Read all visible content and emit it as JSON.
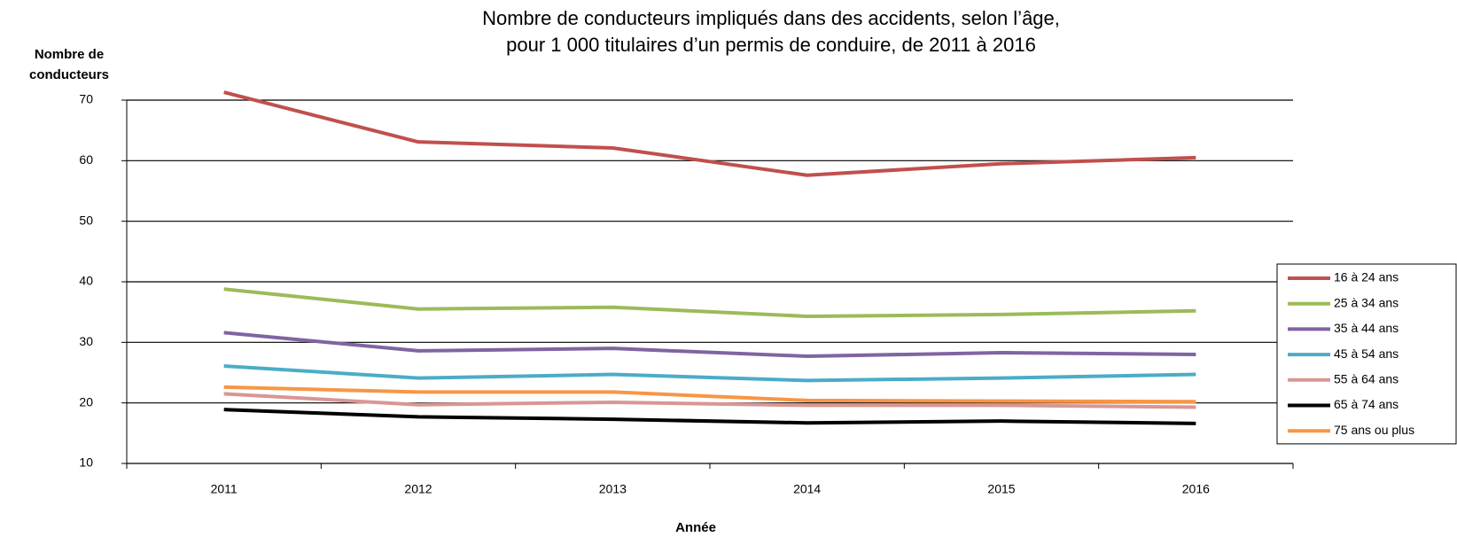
{
  "chart_data": {
    "type": "line",
    "title": [
      "Nombre de conducteurs impliqués dans des accidents, selon l’âge,",
      "pour 1 000 titulaires d’un permis de conduire, de 2011 à 2016"
    ],
    "y_label": [
      "Nombre de",
      "conducteurs"
    ],
    "x_label": "Année",
    "categories": [
      "2011",
      "2012",
      "2013",
      "2014",
      "2015",
      "2016"
    ],
    "ylim": [
      10,
      70
    ],
    "yticks": [
      10,
      20,
      30,
      40,
      50,
      60,
      70
    ],
    "grid": true,
    "legend": "right",
    "series": [
      {
        "name": "16 à 24 ans",
        "color": "#c0504d",
        "values": [
          71.3,
          63.1,
          62.1,
          57.6,
          59.5,
          60.5
        ]
      },
      {
        "name": "25 à 34 ans",
        "color": "#9bbb59",
        "values": [
          38.8,
          35.5,
          35.8,
          34.3,
          34.6,
          35.2
        ]
      },
      {
        "name": "35 à 44 ans",
        "color": "#8064a2",
        "values": [
          31.6,
          28.6,
          29.0,
          27.7,
          28.3,
          28.0
        ]
      },
      {
        "name": "45 à 54 ans",
        "color": "#4bacc6",
        "values": [
          26.1,
          24.1,
          24.7,
          23.7,
          24.1,
          24.7
        ]
      },
      {
        "name": "55 à 64 ans",
        "color": "#d99694",
        "values": [
          21.5,
          19.7,
          20.1,
          19.6,
          19.6,
          19.3
        ]
      },
      {
        "name": "65 à 74 ans",
        "color": "#000000",
        "values": [
          18.9,
          17.7,
          17.3,
          16.7,
          17.0,
          16.6
        ]
      },
      {
        "name": "75 ans ou plus",
        "color": "#f79646",
        "values": [
          22.6,
          21.8,
          21.8,
          20.4,
          20.3,
          20.2
        ]
      }
    ]
  }
}
